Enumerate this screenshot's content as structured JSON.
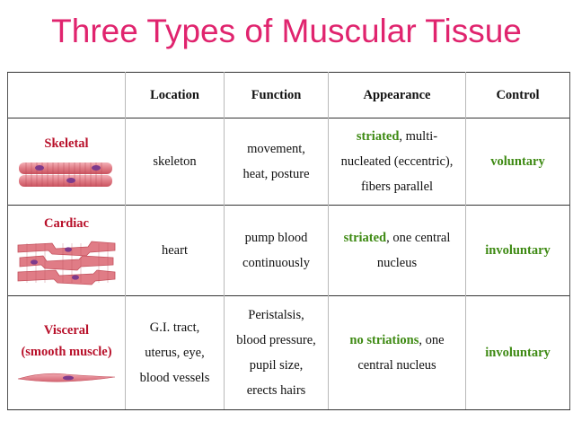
{
  "title": "Three Types of Muscular Tissue",
  "headers": [
    "Location",
    "Function",
    "Appearance",
    "Control"
  ],
  "rows": [
    {
      "type": "Skeletal",
      "location": [
        "skeleton"
      ],
      "function": [
        "movement,",
        "heat, posture"
      ],
      "appearance": {
        "highlight": "striated",
        "rest": [
          ", multi-",
          "nucleated (eccentric),",
          "fibers parallel"
        ]
      },
      "control": "voluntary"
    },
    {
      "type": "Cardiac",
      "location": [
        "heart"
      ],
      "function": [
        "pump blood",
        "continuously"
      ],
      "appearance": {
        "highlight": "striated",
        "rest": [
          ", one central",
          "nucleus"
        ]
      },
      "control": "involuntary"
    },
    {
      "type": [
        "Visceral",
        "(smooth muscle)"
      ],
      "location": [
        "G.I. tract,",
        "uterus, eye,",
        "blood vessels"
      ],
      "function": [
        "Peristalsis,",
        "blood pressure,",
        "pupil size,",
        "erects hairs"
      ],
      "appearance": {
        "highlight": "no striations",
        "rest": [
          ", one",
          "central nucleus"
        ]
      },
      "control": "involuntary"
    }
  ],
  "colors": {
    "title": "#e0246e",
    "muscle_name": "#b8102a",
    "highlight": "#3e8a13",
    "tissue": "#e07c86"
  },
  "icons": [
    "skeletal-muscle-fiber-image",
    "cardiac-muscle-fiber-image",
    "smooth-muscle-cell-image"
  ]
}
